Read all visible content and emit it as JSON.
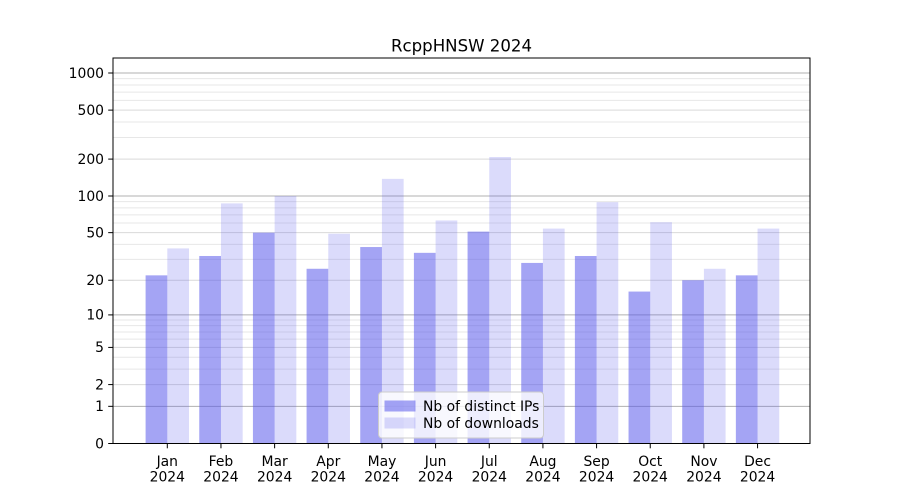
{
  "chart_data": {
    "type": "bar",
    "title": "RcppHNSW 2024",
    "categories": [
      "Jan",
      "Feb",
      "Mar",
      "Apr",
      "May",
      "Jun",
      "Jul",
      "Aug",
      "Sep",
      "Oct",
      "Nov",
      "Dec"
    ],
    "x_tick_second_line": "2024",
    "series": [
      {
        "name": "Nb of distinct IPs",
        "color": "#5a5aeb",
        "alpha": 0.55,
        "values": [
          22,
          32,
          50,
          25,
          38,
          34,
          51,
          28,
          32,
          16,
          20,
          22
        ]
      },
      {
        "name": "Nb of downloads",
        "color": "#5a5aeb",
        "alpha": 0.22,
        "values": [
          37,
          87,
          100,
          49,
          138,
          63,
          208,
          54,
          89,
          61,
          25,
          54
        ]
      }
    ],
    "y_axis": {
      "scale": "log1p",
      "ticks": [
        0,
        1,
        2,
        5,
        10,
        20,
        50,
        100,
        200,
        500,
        1000
      ],
      "decade_ticks": [
        1,
        10,
        100,
        1000
      ],
      "minor_multiples": [
        3,
        4,
        6,
        7,
        8,
        9
      ],
      "ylim": [
        0,
        1320
      ]
    },
    "grid": {
      "on": true,
      "decade_color": "#b0b0b0",
      "major_color": "#d9d9d9",
      "minor_color": "#e7e7e7"
    },
    "legend": {
      "position": "lower center",
      "border_color": "#cccccc",
      "background": "#ffffff"
    }
  }
}
